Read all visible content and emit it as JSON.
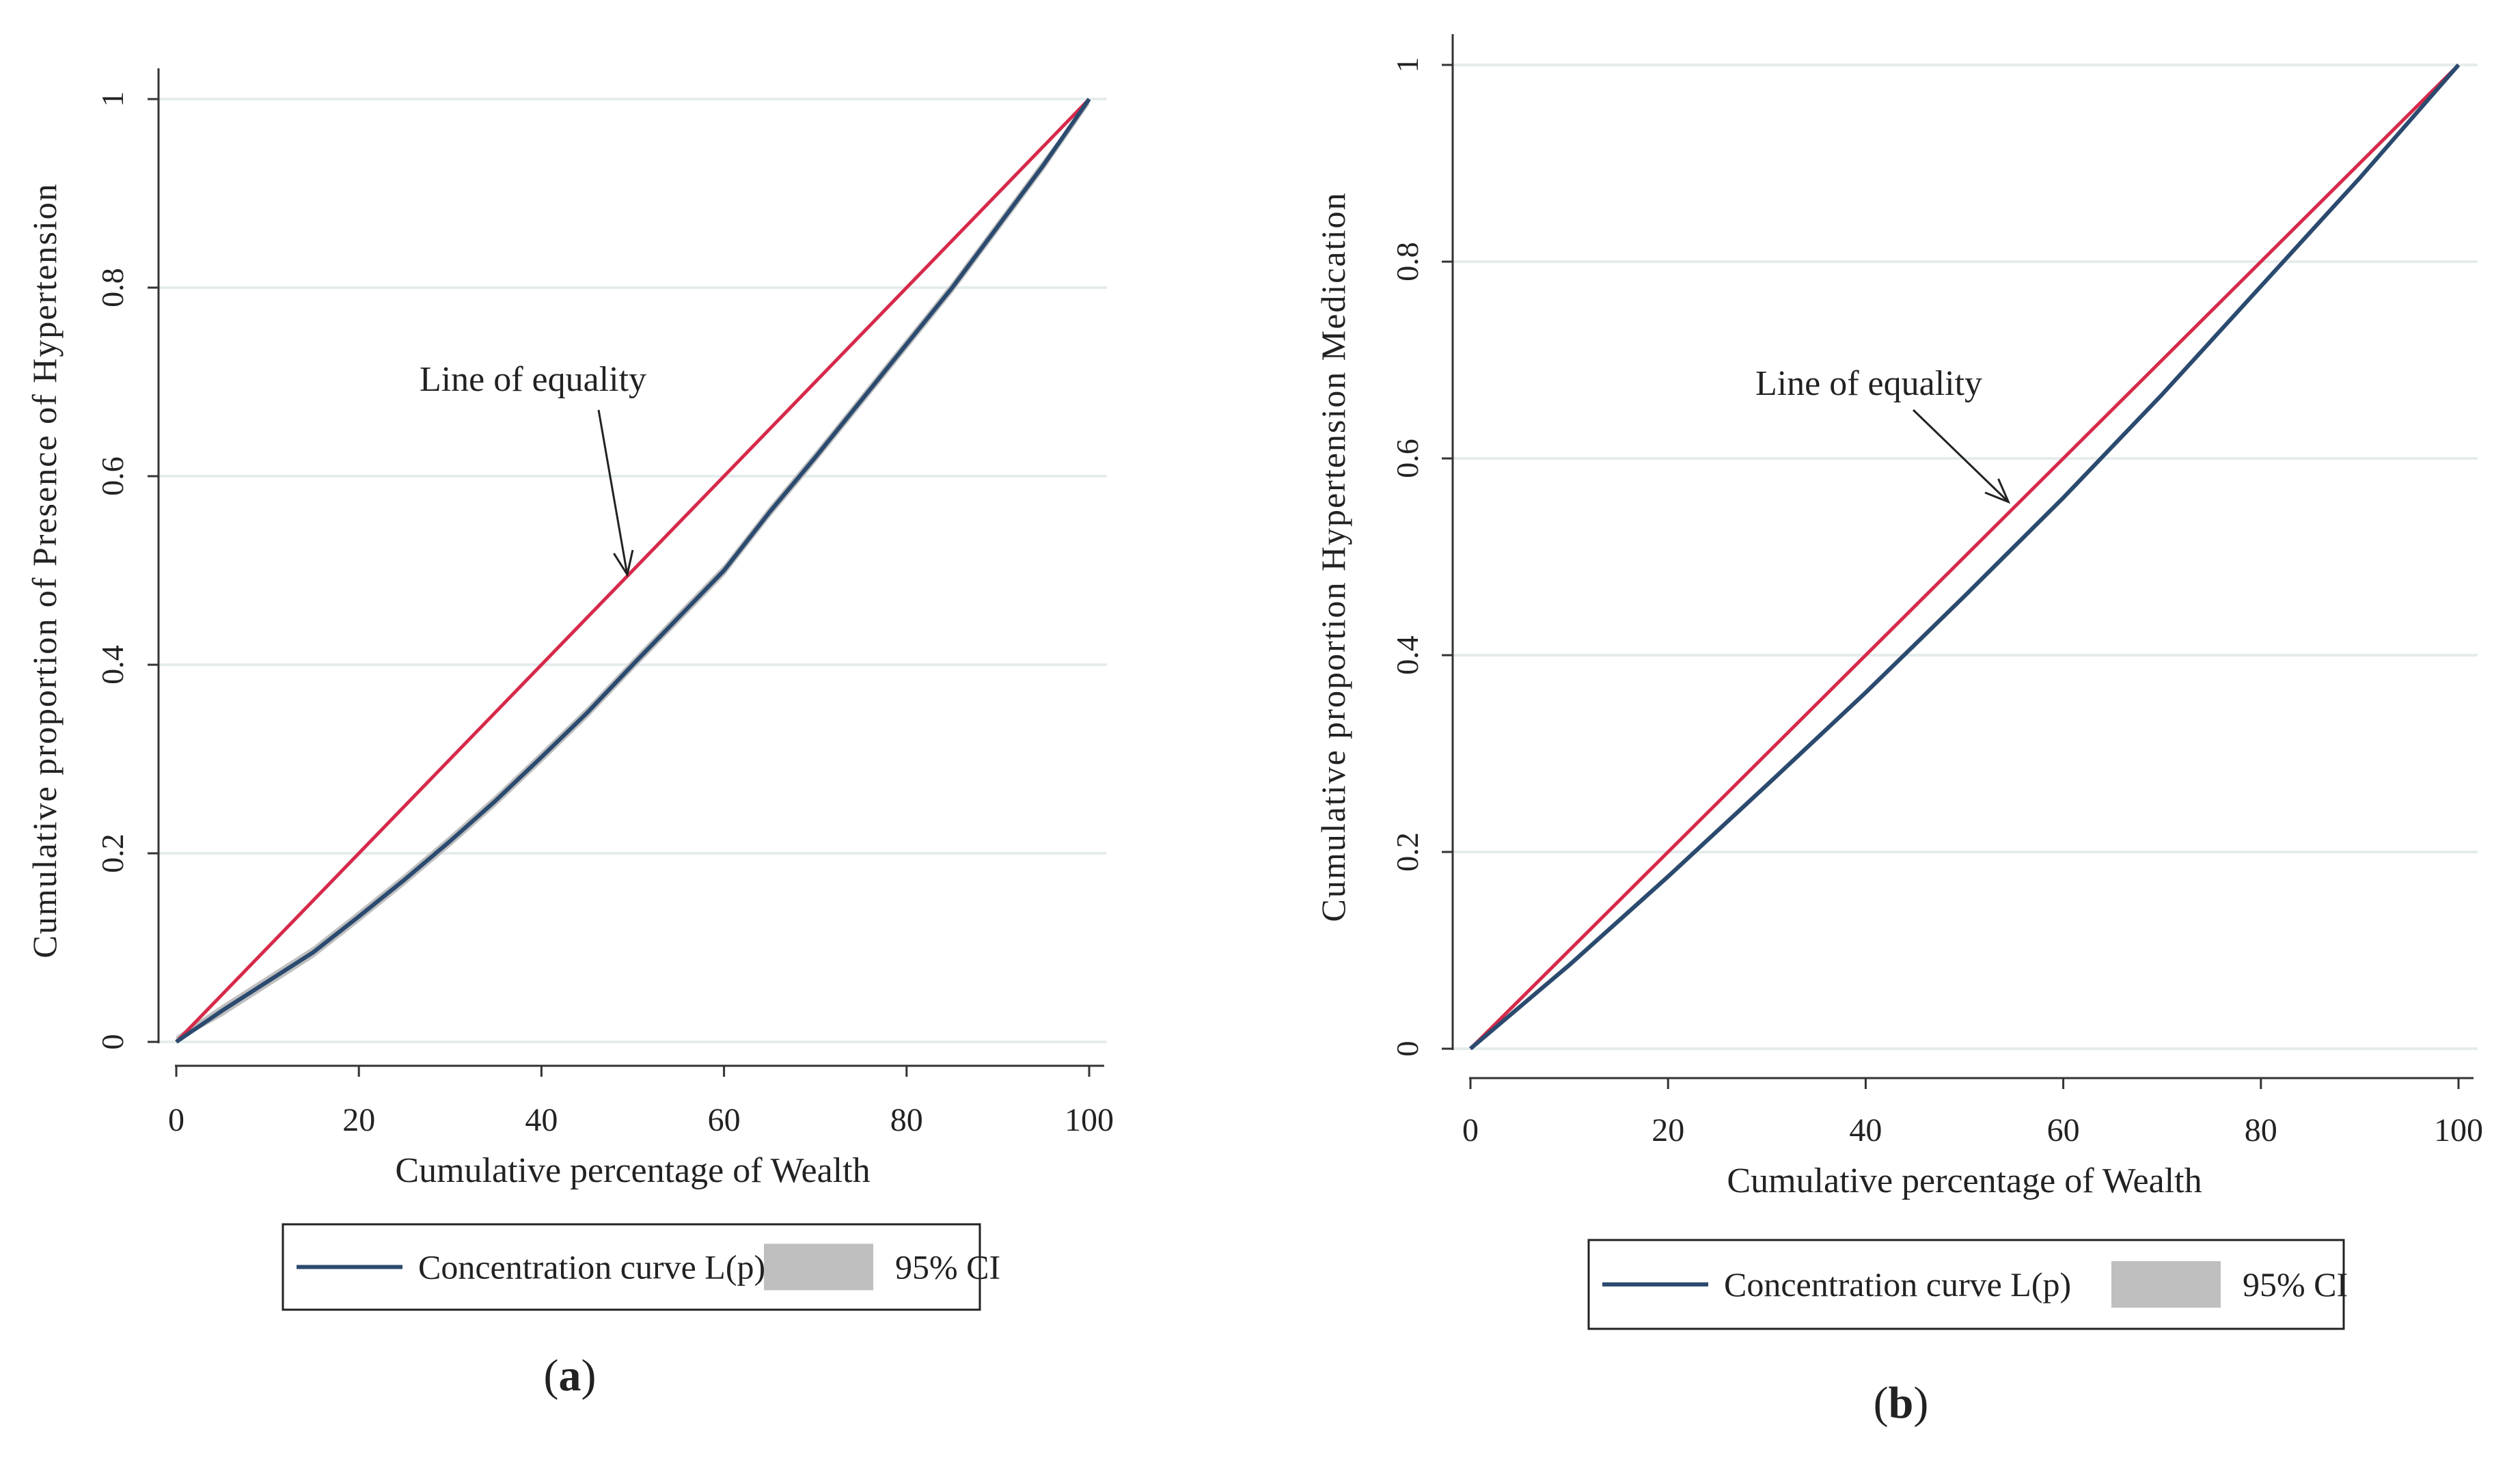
{
  "colors": {
    "equality_line": "#d62a4a",
    "curve": "#2b4a6f",
    "ci_band": "#bfbfbf",
    "grid": "#e4ecec",
    "axis": "#333333",
    "text": "#222222"
  },
  "panels": [
    {
      "label_open": "(",
      "label_letter": "a",
      "label_close": ")"
    },
    {
      "label_open": "(",
      "label_letter": "b",
      "label_close": ")"
    }
  ],
  "chart_data": [
    {
      "type": "line",
      "title": "",
      "xlabel": "Cumulative percentage of Wealth",
      "ylabel": "Cumulative proportion of Presence of Hypertension",
      "xlim": [
        0,
        100
      ],
      "ylim": [
        0,
        1
      ],
      "xticks": [
        0,
        20,
        40,
        60,
        80,
        100
      ],
      "yticks": [
        0,
        0.2,
        0.4,
        0.6,
        0.8,
        1
      ],
      "xtick_labels": [
        "0",
        "20",
        "40",
        "60",
        "80",
        "100"
      ],
      "ytick_labels": [
        "0",
        "0.2",
        "0.4",
        "0.6",
        "0.8",
        "1"
      ],
      "grid": true,
      "series": [
        {
          "name": "Line of equality",
          "x": [
            0,
            100
          ],
          "y": [
            0,
            1
          ]
        },
        {
          "name": "Concentration curve L(p)",
          "x": [
            0,
            5,
            10,
            15,
            20,
            25,
            30,
            35,
            40,
            45,
            50,
            55,
            60,
            65,
            70,
            75,
            80,
            85,
            90,
            95,
            100
          ],
          "y": [
            0,
            0.033,
            0.064,
            0.095,
            0.133,
            0.172,
            0.213,
            0.256,
            0.302,
            0.349,
            0.4,
            0.45,
            0.5,
            0.562,
            0.62,
            0.68,
            0.74,
            0.8,
            0.865,
            0.93,
            1.0
          ],
          "ci_halfwidth": 0.006
        }
      ],
      "annotation": {
        "text": "Line of equality",
        "arrow_to": [
          50,
          0.5
        ]
      },
      "legend": {
        "position": "bottom",
        "items": [
          "Concentration curve L(p)",
          "95% CI"
        ]
      }
    },
    {
      "type": "line",
      "title": "",
      "xlabel": "Cumulative percentage of Wealth",
      "ylabel": "Cumulative proportion Hypertension Medication",
      "xlim": [
        0,
        100
      ],
      "ylim": [
        0,
        1
      ],
      "xticks": [
        0,
        20,
        40,
        60,
        80,
        100
      ],
      "yticks": [
        0,
        0.2,
        0.4,
        0.6,
        0.8,
        1
      ],
      "xtick_labels": [
        "0",
        "20",
        "40",
        "60",
        "80",
        "100"
      ],
      "ytick_labels": [
        "0",
        "0.2",
        "0.4",
        "0.6",
        "0.8",
        "1"
      ],
      "grid": true,
      "series": [
        {
          "name": "Line of equality",
          "x": [
            0,
            100
          ],
          "y": [
            0,
            1
          ]
        },
        {
          "name": "Concentration curve L(p)",
          "x": [
            0,
            10,
            20,
            30,
            40,
            50,
            60,
            70,
            80,
            90,
            100
          ],
          "y": [
            0,
            0.085,
            0.175,
            0.268,
            0.362,
            0.46,
            0.56,
            0.665,
            0.775,
            0.885,
            1.0
          ],
          "ci_halfwidth": 0.003
        }
      ],
      "annotation": {
        "text": "Line of equality",
        "arrow_to": [
          55,
          0.56
        ]
      },
      "legend": {
        "position": "bottom",
        "items": [
          "Concentration curve L(p)",
          "95% CI"
        ]
      }
    }
  ]
}
